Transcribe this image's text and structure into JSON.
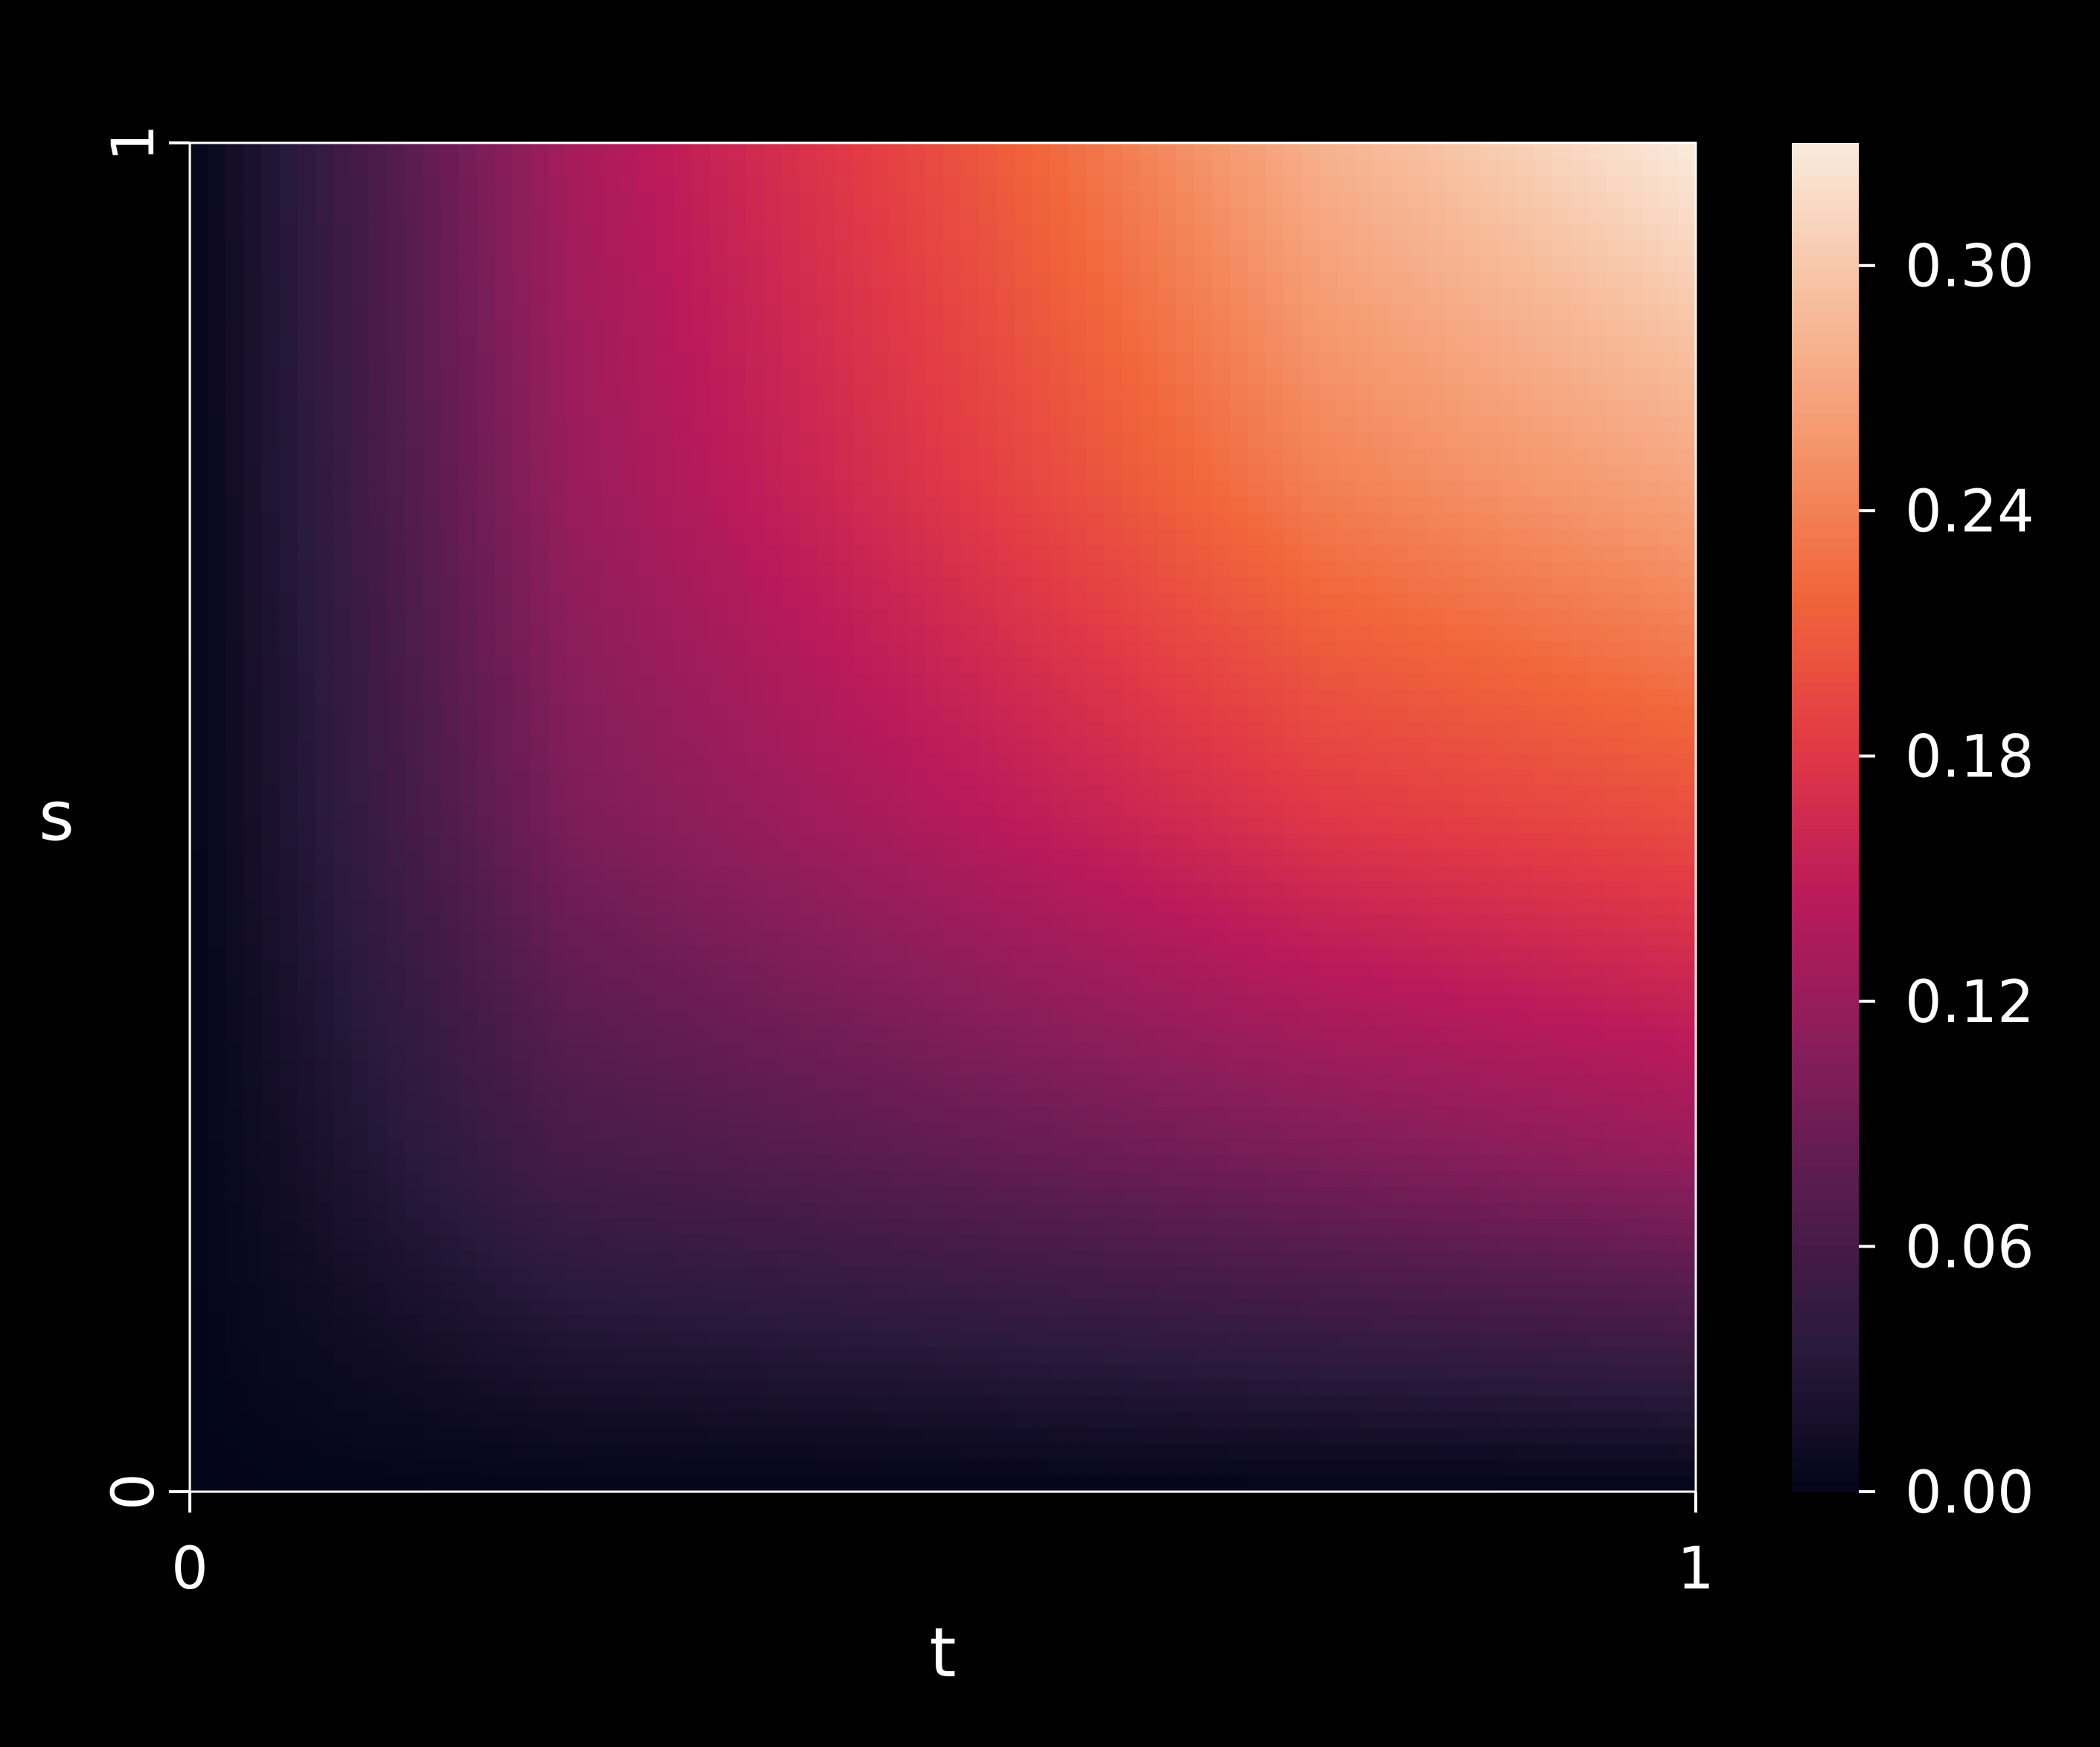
{
  "chart_data": {
    "type": "heatmap",
    "title": "",
    "xlabel": "t",
    "ylabel": "s",
    "xlim": [
      0,
      1
    ],
    "ylim": [
      0,
      1
    ],
    "x_ticks": [
      "0",
      "1"
    ],
    "y_ticks": [
      "0",
      "1"
    ],
    "grid": false,
    "colormap": "rocket",
    "colorbar": {
      "range": [
        0.0,
        0.33
      ],
      "ticks": [
        0.0,
        0.06,
        0.12,
        0.18,
        0.24,
        0.3
      ],
      "tick_labels": [
        "0.00",
        "0.06",
        "0.12",
        "0.18",
        "0.24",
        "0.30"
      ]
    },
    "grid_samples": {
      "x": [
        0.0,
        0.25,
        0.5,
        0.75,
        1.0
      ],
      "y": [
        0.0,
        0.25,
        0.5,
        0.75,
        1.0
      ],
      "values": [
        [
          0.0,
          0.0,
          0.0,
          0.0,
          0.0
        ],
        [
          0.0,
          0.06,
          0.08,
          0.1,
          0.12
        ],
        [
          0.0,
          0.1,
          0.14,
          0.18,
          0.2
        ],
        [
          0.0,
          0.12,
          0.18,
          0.24,
          0.27
        ],
        [
          0.0,
          0.13,
          0.2,
          0.28,
          0.33
        ]
      ]
    },
    "colors": {
      "background": "#000000",
      "foreground": "#ffffff",
      "palette": [
        "#03051a",
        "#2b1a3c",
        "#561c4d",
        "#891d5b",
        "#bc1a5a",
        "#e23a45",
        "#f1663a",
        "#f5966c",
        "#f7c0a0",
        "#faebdd"
      ]
    }
  }
}
